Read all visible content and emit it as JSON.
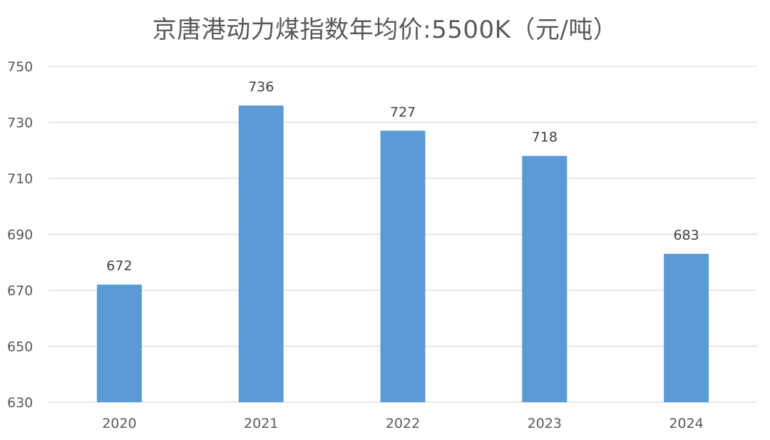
{
  "chart_data": {
    "type": "bar",
    "title": "京唐港动力煤指数年均价:5500K（元/吨）",
    "categories": [
      "2020",
      "2021",
      "2022",
      "2023",
      "2024"
    ],
    "values": [
      672,
      736,
      727,
      718,
      683
    ],
    "data_labels": [
      "672",
      "736",
      "727",
      "718",
      "683"
    ],
    "xlabel": "",
    "ylabel": "",
    "ylim": [
      630,
      750
    ],
    "yticks": [
      630,
      650,
      670,
      690,
      710,
      730,
      750
    ],
    "ytick_labels": [
      "630",
      "650",
      "670",
      "690",
      "710",
      "730",
      "750"
    ],
    "grid": true,
    "legend": "none",
    "colors": {
      "bar": "#5B9BD5",
      "grid": "#D9D9D9",
      "text": "#595959"
    }
  }
}
